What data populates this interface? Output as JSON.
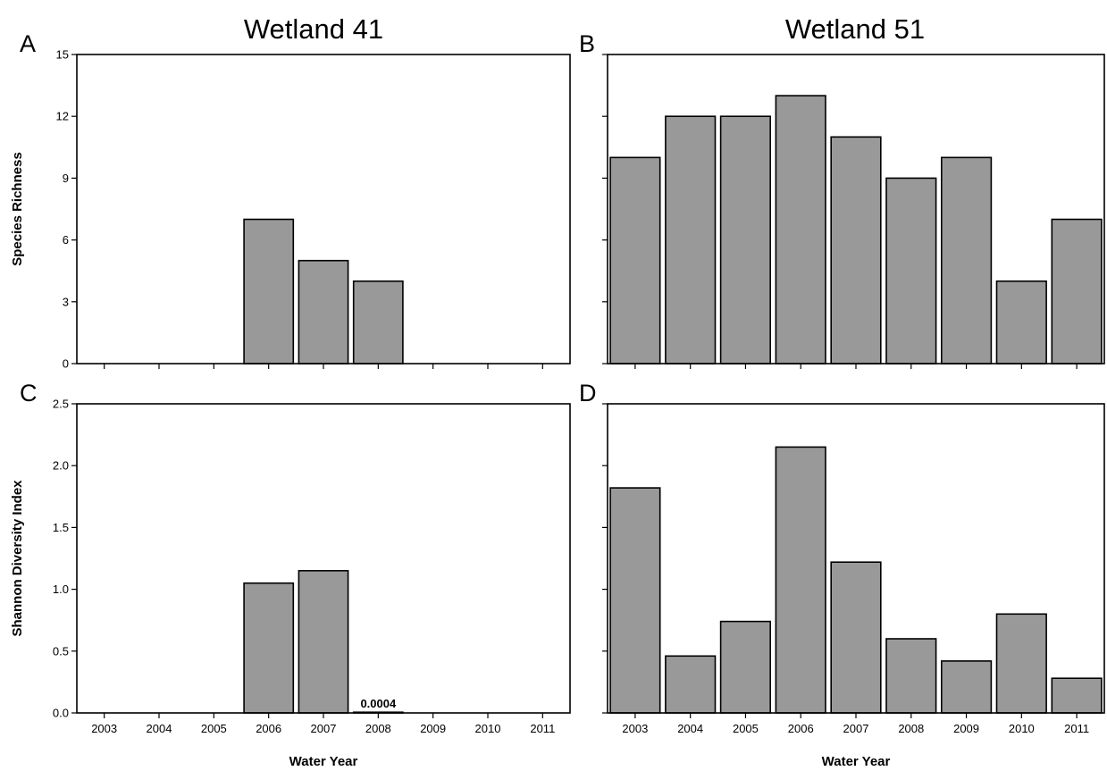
{
  "column_titles": [
    "Wetland 41",
    "Wetland 51"
  ],
  "colors": {
    "bar_fill": "#999999",
    "bar_stroke": "#000000"
  },
  "chart_data": [
    {
      "panel": "A",
      "type": "bar",
      "title": "Wetland 41",
      "categories": [
        "2003",
        "2004",
        "2005",
        "2006",
        "2007",
        "2008",
        "2009",
        "2010",
        "2011"
      ],
      "values": [
        0,
        0,
        0,
        7,
        5,
        4,
        0,
        0,
        0
      ],
      "ylabel": "Species Richness",
      "xlabel": "",
      "ylim": [
        0,
        15
      ],
      "yticks": [
        0,
        3,
        6,
        9,
        12,
        15
      ],
      "show_ytick_labels": true,
      "show_xtick_labels": false,
      "annotations": []
    },
    {
      "panel": "B",
      "type": "bar",
      "title": "Wetland 51",
      "categories": [
        "2003",
        "2004",
        "2005",
        "2006",
        "2007",
        "2008",
        "2009",
        "2010",
        "2011"
      ],
      "values": [
        10,
        12,
        12,
        13,
        11,
        9,
        10,
        4,
        7
      ],
      "ylabel": "",
      "xlabel": "",
      "ylim": [
        0,
        15
      ],
      "yticks": [
        0,
        3,
        6,
        9,
        12,
        15
      ],
      "show_ytick_labels": false,
      "show_xtick_labels": false,
      "annotations": []
    },
    {
      "panel": "C",
      "type": "bar",
      "title": "",
      "categories": [
        "2003",
        "2004",
        "2005",
        "2006",
        "2007",
        "2008",
        "2009",
        "2010",
        "2011"
      ],
      "values": [
        0,
        0,
        0,
        1.05,
        1.15,
        0.0004,
        0,
        0,
        0
      ],
      "ylabel": "Shannon Diversity Index",
      "xlabel": "Water Year",
      "ylim": [
        0,
        2.5
      ],
      "yticks": [
        0.0,
        0.5,
        1.0,
        1.5,
        2.0,
        2.5
      ],
      "ytick_labels": [
        "0.0",
        "0.5",
        "1.0",
        "1.5",
        "2.0",
        "2.5"
      ],
      "show_ytick_labels": true,
      "show_xtick_labels": true,
      "annotations": [
        {
          "category": "2008",
          "text": "0.0004"
        }
      ]
    },
    {
      "panel": "D",
      "type": "bar",
      "title": "",
      "categories": [
        "2003",
        "2004",
        "2005",
        "2006",
        "2007",
        "2008",
        "2009",
        "2010",
        "2011"
      ],
      "values": [
        1.82,
        0.46,
        0.74,
        2.15,
        1.22,
        0.6,
        0.42,
        0.8,
        0.28
      ],
      "ylabel": "",
      "xlabel": "Water Year",
      "ylim": [
        0,
        2.5
      ],
      "yticks": [
        0.0,
        0.5,
        1.0,
        1.5,
        2.0,
        2.5
      ],
      "show_ytick_labels": false,
      "show_xtick_labels": true,
      "annotations": []
    }
  ]
}
